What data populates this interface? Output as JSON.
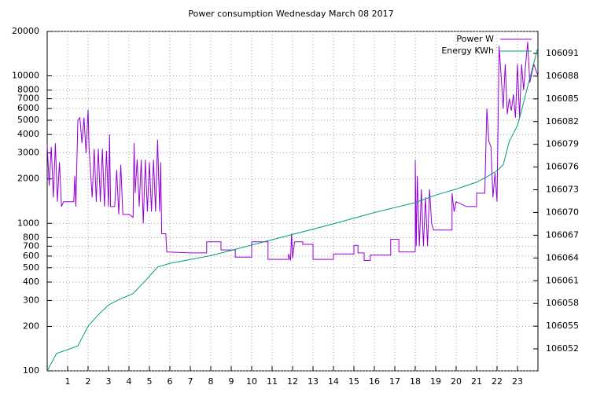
{
  "chart_data": {
    "type": "line",
    "title": "Power consumption Wednesday March 08 2017",
    "xlim": [
      0,
      24
    ],
    "xticks": [
      1,
      2,
      3,
      4,
      5,
      6,
      7,
      8,
      9,
      10,
      11,
      12,
      13,
      14,
      15,
      16,
      17,
      18,
      19,
      20,
      21,
      22,
      23
    ],
    "ylim": [
      100,
      20000
    ],
    "log_scale": true,
    "yticks": [
      100,
      200,
      300,
      400,
      500,
      600,
      700,
      800,
      1000,
      2000,
      3000,
      4000,
      5000,
      6000,
      7000,
      8000,
      10000,
      20000
    ],
    "y2lim": [
      106049.1,
      106093.9
    ],
    "y2ticks": [
      106052,
      106055,
      106058,
      106061,
      106064,
      106067,
      106070,
      106073,
      106076,
      106079,
      106082,
      106085,
      106088,
      106091
    ],
    "grid": true,
    "legend": "top-right",
    "series": [
      {
        "name": "Power W",
        "color": "#9400d3",
        "x": [
          0,
          0.1,
          0.2,
          0.3,
          0.4,
          0.5,
          0.6,
          0.7,
          0.8,
          1.3,
          1.35,
          1.4,
          1.5,
          1.6,
          1.7,
          1.8,
          1.9,
          2.0,
          2.05,
          2.2,
          2.3,
          2.4,
          2.5,
          2.6,
          2.7,
          2.8,
          2.9,
          3.0,
          3.05,
          3.1,
          3.3,
          3.4,
          3.5,
          3.6,
          3.7,
          4.0,
          4.2,
          4.25,
          4.3,
          4.4,
          4.5,
          4.6,
          4.7,
          4.8,
          4.9,
          5.0,
          5.1,
          5.2,
          5.3,
          5.4,
          5.5,
          5.55,
          5.6,
          5.8,
          5.85,
          7.0,
          7.8,
          7.8,
          8.5,
          8.5,
          9.2,
          9.2,
          10.0,
          10.0,
          10.8,
          10.8,
          11.8,
          11.8,
          11.9,
          11.95,
          12.0,
          12.1,
          12.5,
          12.5,
          13.0,
          13.0,
          14.0,
          14.0,
          15.0,
          15.0,
          15.2,
          15.2,
          15.5,
          15.5,
          15.8,
          15.8,
          16.8,
          16.8,
          17.2,
          17.2,
          18.0,
          18.0,
          18.05,
          18.1,
          18.2,
          18.3,
          18.4,
          18.5,
          18.6,
          18.7,
          18.8,
          18.9,
          19.8,
          19.8,
          19.9,
          20.0,
          20.5,
          21.0,
          21.0,
          21.4,
          21.5,
          21.6,
          21.7,
          21.8,
          21.9,
          22.0,
          22.1,
          22.2,
          22.3,
          22.4,
          22.5,
          22.6,
          22.7,
          22.8,
          22.9,
          23.0,
          23.1,
          23.2,
          23.3,
          23.4,
          23.5,
          23.6,
          23.8,
          24.0
        ],
        "values": [
          3400,
          1800,
          3300,
          1500,
          3500,
          1400,
          2600,
          1300,
          1400,
          1400,
          2100,
          1300,
          5000,
          5200,
          3500,
          5200,
          3000,
          5900,
          3200,
          1500,
          3200,
          1400,
          3200,
          1400,
          3200,
          1300,
          3100,
          1300,
          4000,
          1300,
          1300,
          2300,
          1150,
          2500,
          1150,
          1150,
          1100,
          3500,
          1600,
          2700,
          1300,
          2700,
          1000,
          2700,
          1200,
          2600,
          1200,
          2700,
          1200,
          3700,
          1200,
          2600,
          850,
          850,
          640,
          630,
          630,
          750,
          750,
          660,
          660,
          590,
          590,
          750,
          750,
          570,
          570,
          620,
          560,
          850,
          580,
          750,
          750,
          720,
          720,
          570,
          570,
          620,
          620,
          710,
          710,
          630,
          630,
          560,
          560,
          610,
          610,
          780,
          780,
          640,
          640,
          2700,
          700,
          2100,
          700,
          1700,
          700,
          1500,
          700,
          1700,
          1000,
          900,
          900,
          1600,
          1200,
          1400,
          1300,
          1300,
          1600,
          1600,
          6000,
          3600,
          3300,
          1500,
          2200,
          1400,
          16000,
          10000,
          6000,
          12000,
          5500,
          7000,
          5800,
          7500,
          5200,
          12000,
          5200,
          12000,
          8000,
          12000,
          17000,
          9000,
          12000,
          10000
        ]
      },
      {
        "name": "Energy KWh",
        "color": "#009e73",
        "axis": "y2",
        "x": [
          0,
          0.46,
          1.0,
          1.5,
          2.0,
          2.5,
          3.0,
          3.5,
          4.2,
          4.8,
          5.4,
          6.0,
          7.0,
          8.0,
          10.0,
          12.0,
          14.0,
          16.0,
          18.0,
          19.0,
          20.0,
          21.0,
          21.5,
          22.0,
          22.3,
          22.6,
          23.0,
          23.2,
          23.6,
          24.0
        ],
        "values": [
          106049.1,
          106051.4,
          106051.9,
          106052.4,
          106055,
          106056.5,
          106057.8,
          106058.5,
          106059.3,
          106061,
          106062.8,
          106063.3,
          106063.8,
          106064.3,
          106065.7,
          106067.1,
          106068.5,
          106070,
          106071.3,
          106072.3,
          106073.1,
          106074,
          106074.7,
          106075.5,
          106076.3,
          106079.4,
          106081.5,
          106083.5,
          106087.7,
          106091.8
        ]
      }
    ]
  }
}
